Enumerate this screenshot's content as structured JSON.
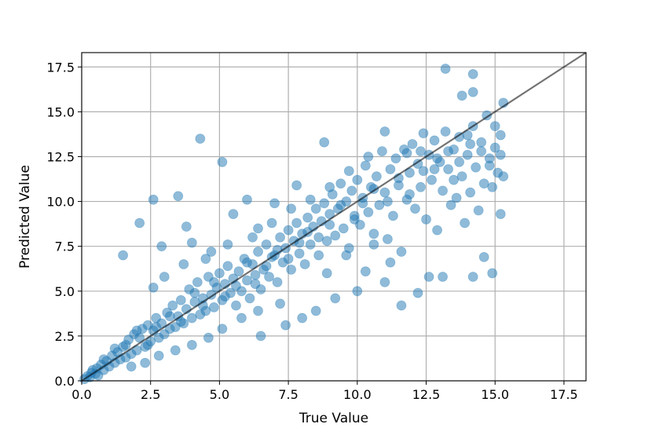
{
  "chart_data": {
    "type": "scatter",
    "title": "",
    "xlabel": "True Value",
    "ylabel": "Predicted Value",
    "xlim": [
      0,
      18.3
    ],
    "ylim": [
      0,
      18.3
    ],
    "xticks": [
      "0.0",
      "2.5",
      "5.0",
      "7.5",
      "10.0",
      "12.5",
      "15.0",
      "17.5"
    ],
    "yticks": [
      "0.0",
      "2.5",
      "5.0",
      "7.5",
      "10.0",
      "12.5",
      "15.0",
      "17.5"
    ],
    "grid": true,
    "legend": "none",
    "point_color": "#1f77b4",
    "point_alpha": 0.5,
    "reference_line": {
      "from": [
        0,
        0
      ],
      "to": [
        18.3,
        18.3
      ],
      "color": "#000000",
      "alpha": 0.55
    },
    "points": [
      [
        0.1,
        0.1
      ],
      [
        0.2,
        0.25
      ],
      [
        0.3,
        0.2
      ],
      [
        0.35,
        0.45
      ],
      [
        0.5,
        0.4
      ],
      [
        0.55,
        0.7
      ],
      [
        0.6,
        0.3
      ],
      [
        0.7,
        0.9
      ],
      [
        0.8,
        0.6
      ],
      [
        0.9,
        1.1
      ],
      [
        1.0,
        0.8
      ],
      [
        1.1,
        1.4
      ],
      [
        1.2,
        1.0
      ],
      [
        1.3,
        1.6
      ],
      [
        1.4,
        1.2
      ],
      [
        1.5,
        1.9
      ],
      [
        1.6,
        1.3
      ],
      [
        1.7,
        2.3
      ],
      [
        1.8,
        1.5
      ],
      [
        1.9,
        2.6
      ],
      [
        2.0,
        1.7
      ],
      [
        2.1,
        2.4
      ],
      [
        2.2,
        2.9
      ],
      [
        2.3,
        1.9
      ],
      [
        2.4,
        3.1
      ],
      [
        2.5,
        2.2
      ],
      [
        2.6,
        2.8
      ],
      [
        2.7,
        3.5
      ],
      [
        2.8,
        2.4
      ],
      [
        2.9,
        3.2
      ],
      [
        3.0,
        2.6
      ],
      [
        3.1,
        3.8
      ],
      [
        3.2,
        2.9
      ],
      [
        3.3,
        4.2
      ],
      [
        3.4,
        3.0
      ],
      [
        3.5,
        3.6
      ],
      [
        3.6,
        4.5
      ],
      [
        3.7,
        3.2
      ],
      [
        3.8,
        4.0
      ],
      [
        3.9,
        5.1
      ],
      [
        4.0,
        3.5
      ],
      [
        4.1,
        4.4
      ],
      [
        4.2,
        5.5
      ],
      [
        4.3,
        3.7
      ],
      [
        4.4,
        4.6
      ],
      [
        4.5,
        3.9
      ],
      [
        4.6,
        5.8
      ],
      [
        4.7,
        4.8
      ],
      [
        4.8,
        4.1
      ],
      [
        4.9,
        5.2
      ],
      [
        5.0,
        6.0
      ],
      [
        5.1,
        4.5
      ],
      [
        5.2,
        5.4
      ],
      [
        5.3,
        6.4
      ],
      [
        5.4,
        4.9
      ],
      [
        5.5,
        5.7
      ],
      [
        5.6,
        4.2
      ],
      [
        5.7,
        6.1
      ],
      [
        5.8,
        5.0
      ],
      [
        5.9,
        6.8
      ],
      [
        6.0,
        5.6
      ],
      [
        6.1,
        4.6
      ],
      [
        6.2,
        6.5
      ],
      [
        6.3,
        5.9
      ],
      [
        6.4,
        7.2
      ],
      [
        6.5,
        5.1
      ],
      [
        6.6,
        6.2
      ],
      [
        6.7,
        7.6
      ],
      [
        6.8,
        5.8
      ],
      [
        6.9,
        6.9
      ],
      [
        7.0,
        7.0
      ],
      [
        7.1,
        5.5
      ],
      [
        7.2,
        8.0
      ],
      [
        7.3,
        6.6
      ],
      [
        7.4,
        7.4
      ],
      [
        7.5,
        8.4
      ],
      [
        7.6,
        6.2
      ],
      [
        7.7,
        7.8
      ],
      [
        7.8,
        8.8
      ],
      [
        7.9,
        7.1
      ],
      [
        8.0,
        8.2
      ],
      [
        8.1,
        6.5
      ],
      [
        8.2,
        9.1
      ],
      [
        8.3,
        7.6
      ],
      [
        8.4,
        8.6
      ],
      [
        8.5,
        9.6
      ],
      [
        8.6,
        7.0
      ],
      [
        8.7,
        8.9
      ],
      [
        8.8,
        9.9
      ],
      [
        8.9,
        7.8
      ],
      [
        9.0,
        9.3
      ],
      [
        9.1,
        10.4
      ],
      [
        9.2,
        8.1
      ],
      [
        9.3,
        9.6
      ],
      [
        9.4,
        11.0
      ],
      [
        9.5,
        8.5
      ],
      [
        9.6,
        10.0
      ],
      [
        9.7,
        7.4
      ],
      [
        9.8,
        10.6
      ],
      [
        9.9,
        9.0
      ],
      [
        10.0,
        11.2
      ],
      [
        10.1,
        8.7
      ],
      [
        10.2,
        10.2
      ],
      [
        10.3,
        12.0
      ],
      [
        10.4,
        9.4
      ],
      [
        10.5,
        10.8
      ],
      [
        10.6,
        8.2
      ],
      [
        10.7,
        11.4
      ],
      [
        10.8,
        9.8
      ],
      [
        10.9,
        12.8
      ],
      [
        11.0,
        10.5
      ],
      [
        11.1,
        7.9
      ],
      [
        11.2,
        11.8
      ],
      [
        11.3,
        9.2
      ],
      [
        11.4,
        12.4
      ],
      [
        11.5,
        10.9
      ],
      [
        11.6,
        7.2
      ],
      [
        11.7,
        12.9
      ],
      [
        11.8,
        10.1
      ],
      [
        11.9,
        11.6
      ],
      [
        12.0,
        13.2
      ],
      [
        12.1,
        9.6
      ],
      [
        12.2,
        12.1
      ],
      [
        12.3,
        10.8
      ],
      [
        12.4,
        13.8
      ],
      [
        12.5,
        9.0
      ],
      [
        12.6,
        12.6
      ],
      [
        12.7,
        11.2
      ],
      [
        12.8,
        13.4
      ],
      [
        12.9,
        8.4
      ],
      [
        13.0,
        12.2
      ],
      [
        13.1,
        10.6
      ],
      [
        13.2,
        13.9
      ],
      [
        13.3,
        11.8
      ],
      [
        13.4,
        9.8
      ],
      [
        13.5,
        12.9
      ],
      [
        13.6,
        10.2
      ],
      [
        13.7,
        13.6
      ],
      [
        13.8,
        11.4
      ],
      [
        13.9,
        8.8
      ],
      [
        14.0,
        12.6
      ],
      [
        14.1,
        10.5
      ],
      [
        14.2,
        14.2
      ],
      [
        14.3,
        11.9
      ],
      [
        14.4,
        9.5
      ],
      [
        14.5,
        13.3
      ],
      [
        14.6,
        11.0
      ],
      [
        14.7,
        14.8
      ],
      [
        14.8,
        12.4
      ],
      [
        14.9,
        10.8
      ],
      [
        15.0,
        13.0
      ],
      [
        15.1,
        11.6
      ],
      [
        15.2,
        13.7
      ],
      [
        15.3,
        15.5
      ],
      [
        13.2,
        17.4
      ],
      [
        14.2,
        17.1
      ],
      [
        14.2,
        16.1
      ],
      [
        13.8,
        15.9
      ],
      [
        4.3,
        13.5
      ],
      [
        8.8,
        13.3
      ],
      [
        2.1,
        8.8
      ],
      [
        1.5,
        7.0
      ],
      [
        2.6,
        10.1
      ],
      [
        3.5,
        10.3
      ],
      [
        5.1,
        12.2
      ],
      [
        6.0,
        10.1
      ],
      [
        3.8,
        8.6
      ],
      [
        2.9,
        7.5
      ],
      [
        4.0,
        7.7
      ],
      [
        4.7,
        7.2
      ],
      [
        5.5,
        9.3
      ],
      [
        6.4,
        8.5
      ],
      [
        7.0,
        9.9
      ],
      [
        7.8,
        10.9
      ],
      [
        6.5,
        2.5
      ],
      [
        7.4,
        3.1
      ],
      [
        8.0,
        3.5
      ],
      [
        8.5,
        3.9
      ],
      [
        9.2,
        4.6
      ],
      [
        10.0,
        5.0
      ],
      [
        10.3,
        6.1
      ],
      [
        11.0,
        5.5
      ],
      [
        11.6,
        4.2
      ],
      [
        12.2,
        4.9
      ],
      [
        13.1,
        5.8
      ],
      [
        14.2,
        5.8
      ],
      [
        14.9,
        6.0
      ],
      [
        15.2,
        9.3
      ],
      [
        14.6,
        6.9
      ],
      [
        12.6,
        5.8
      ],
      [
        11.2,
        6.6
      ],
      [
        10.6,
        7.6
      ],
      [
        9.6,
        7.0
      ],
      [
        8.9,
        6.0
      ],
      [
        7.2,
        4.3
      ],
      [
        6.4,
        3.9
      ],
      [
        5.8,
        3.5
      ],
      [
        5.1,
        2.9
      ],
      [
        4.6,
        2.4
      ],
      [
        4.0,
        2.0
      ],
      [
        3.4,
        1.7
      ],
      [
        2.8,
        1.4
      ],
      [
        2.3,
        1.0
      ],
      [
        1.8,
        0.8
      ],
      [
        3.0,
        5.8
      ],
      [
        2.6,
        5.2
      ],
      [
        3.7,
        6.5
      ],
      [
        4.5,
        6.8
      ],
      [
        5.3,
        7.6
      ],
      [
        6.2,
        8.0
      ],
      [
        6.9,
        8.8
      ],
      [
        7.6,
        9.6
      ],
      [
        8.3,
        10.1
      ],
      [
        9.0,
        10.8
      ],
      [
        9.7,
        11.7
      ],
      [
        10.4,
        12.5
      ],
      [
        11.0,
        13.9
      ],
      [
        11.8,
        12.7
      ],
      [
        12.3,
        12.8
      ],
      [
        12.8,
        11.8
      ],
      [
        13.5,
        11.2
      ],
      [
        14.0,
        13.7
      ],
      [
        14.8,
        12.0
      ],
      [
        15.3,
        11.4
      ],
      [
        0.4,
        0.6
      ],
      [
        0.8,
        1.2
      ],
      [
        1.2,
        1.8
      ],
      [
        1.6,
        2.0
      ],
      [
        2.0,
        2.8
      ],
      [
        2.4,
        2.0
      ],
      [
        2.7,
        3.0
      ],
      [
        3.2,
        3.6
      ],
      [
        3.6,
        3.3
      ],
      [
        4.1,
        4.9
      ],
      [
        4.4,
        4.2
      ],
      [
        4.8,
        5.5
      ],
      [
        5.2,
        4.7
      ],
      [
        5.6,
        5.3
      ],
      [
        6.0,
        6.6
      ],
      [
        6.3,
        5.4
      ],
      [
        6.7,
        6.4
      ],
      [
        7.1,
        7.3
      ],
      [
        7.5,
        6.8
      ],
      [
        7.9,
        7.7
      ],
      [
        8.2,
        8.3
      ],
      [
        8.6,
        8.0
      ],
      [
        9.0,
        8.7
      ],
      [
        9.4,
        9.8
      ],
      [
        9.9,
        9.2
      ],
      [
        10.2,
        9.9
      ],
      [
        10.6,
        10.7
      ],
      [
        11.1,
        10.0
      ],
      [
        11.5,
        11.3
      ],
      [
        11.9,
        10.4
      ],
      [
        12.4,
        11.7
      ],
      [
        12.9,
        12.4
      ],
      [
        13.3,
        12.8
      ],
      [
        13.7,
        12.2
      ],
      [
        14.1,
        13.2
      ],
      [
        14.5,
        12.8
      ],
      [
        15.0,
        14.2
      ],
      [
        15.2,
        12.6
      ]
    ]
  }
}
